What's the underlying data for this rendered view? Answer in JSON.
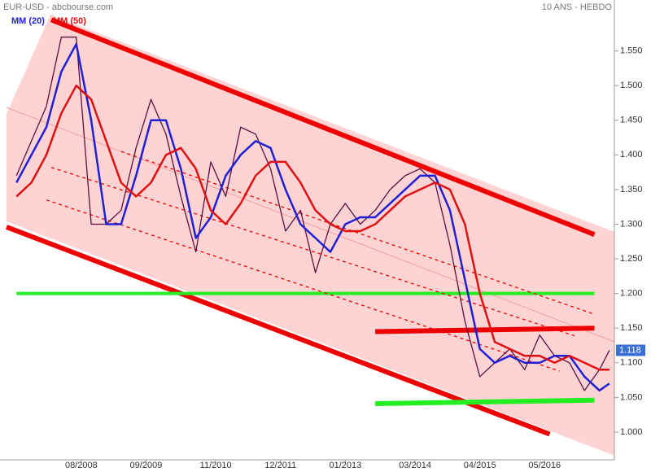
{
  "chart_data": {
    "type": "line",
    "title": "EUR-USD - abcbourse.com",
    "subtitle": "10 ANS - HEBDO",
    "x": [
      "07/2007",
      "10/2007",
      "01/2008",
      "04/2008",
      "07/2008",
      "10/2008",
      "01/2009",
      "04/2009",
      "07/2009",
      "10/2009",
      "01/2010",
      "04/2010",
      "07/2010",
      "10/2010",
      "01/2011",
      "04/2011",
      "07/2011",
      "10/2011",
      "01/2012",
      "04/2012",
      "07/2012",
      "10/2012",
      "01/2013",
      "04/2013",
      "07/2013",
      "10/2013",
      "01/2014",
      "04/2014",
      "07/2014",
      "10/2014",
      "01/2015",
      "04/2015",
      "07/2015",
      "10/2015",
      "01/2016",
      "04/2016",
      "07/2016",
      "10/2016",
      "01/2017",
      "04/2017",
      "06/2017"
    ],
    "series": [
      {
        "name": "EUR-USD",
        "color": "#5a1040",
        "legend": false,
        "values": [
          1.37,
          1.42,
          1.47,
          1.57,
          1.57,
          1.3,
          1.3,
          1.32,
          1.41,
          1.48,
          1.43,
          1.34,
          1.26,
          1.39,
          1.34,
          1.44,
          1.43,
          1.38,
          1.29,
          1.32,
          1.23,
          1.3,
          1.33,
          1.3,
          1.32,
          1.35,
          1.37,
          1.38,
          1.36,
          1.27,
          1.16,
          1.08,
          1.1,
          1.12,
          1.09,
          1.14,
          1.11,
          1.1,
          1.06,
          1.09,
          1.118
        ],
        "value_labels": [
          null,
          null,
          null,
          null,
          null,
          null,
          null,
          null,
          null,
          null,
          null,
          null,
          null,
          null,
          null,
          null,
          null,
          null,
          null,
          null,
          null,
          null,
          null,
          null,
          null,
          null,
          null,
          null,
          null,
          null,
          null,
          null,
          null,
          null,
          null,
          null,
          null,
          null,
          null,
          null,
          "1.118"
        ]
      },
      {
        "name": "MM (20)",
        "color": "#1f1fd6",
        "legend": true,
        "values": [
          1.36,
          1.4,
          1.44,
          1.52,
          1.56,
          1.45,
          1.3,
          1.3,
          1.37,
          1.45,
          1.45,
          1.38,
          1.28,
          1.31,
          1.37,
          1.4,
          1.42,
          1.41,
          1.35,
          1.3,
          1.28,
          1.26,
          1.3,
          1.31,
          1.31,
          1.33,
          1.35,
          1.37,
          1.37,
          1.32,
          1.22,
          1.12,
          1.1,
          1.11,
          1.1,
          1.1,
          1.11,
          1.11,
          1.08,
          1.06,
          1.07
        ]
      },
      {
        "name": "MM (50)",
        "color": "#e01010",
        "legend": true,
        "values": [
          1.34,
          1.36,
          1.4,
          1.46,
          1.5,
          1.48,
          1.42,
          1.36,
          1.34,
          1.36,
          1.4,
          1.41,
          1.38,
          1.32,
          1.3,
          1.33,
          1.37,
          1.39,
          1.39,
          1.36,
          1.32,
          1.3,
          1.29,
          1.29,
          1.3,
          1.32,
          1.34,
          1.35,
          1.36,
          1.35,
          1.3,
          1.2,
          1.13,
          1.12,
          1.11,
          1.11,
          1.1,
          1.11,
          1.1,
          1.09,
          1.09
        ]
      }
    ],
    "lines": [
      {
        "from": [
          "02/2008",
          1.595
        ],
        "to": [
          "03/2017",
          1.285
        ],
        "color": "#ee0000",
        "style": "thick"
      },
      {
        "from": [
          "05/2007",
          1.296
        ],
        "to": [
          "06/2016",
          0.997
        ],
        "color": "#ee0000",
        "style": "thick"
      },
      {
        "from": [
          "07/2007",
          1.2
        ],
        "to": [
          "03/2017",
          1.2
        ],
        "color": "#22ee22",
        "style": "medium"
      },
      {
        "from": [
          "07/2013",
          1.145
        ],
        "to": [
          "03/2017",
          1.15
        ],
        "color": "#ee0000",
        "style": "thick"
      },
      {
        "from": [
          "07/2013",
          1.041
        ],
        "to": [
          "03/2017",
          1.046
        ],
        "color": "#22ee22",
        "style": "thick"
      },
      {
        "from": [
          "04/2009",
          1.405
        ],
        "to": [
          "03/2017",
          1.17
        ],
        "color": "#ee0000",
        "style": "dashed"
      },
      {
        "from": [
          "02/2008",
          1.382
        ],
        "to": [
          "11/2016",
          1.139
        ],
        "color": "#ee0000",
        "style": "dashed"
      },
      {
        "from": [
          "01/2008",
          1.335
        ],
        "to": [
          "08/2016",
          1.088
        ],
        "color": "#ee0000",
        "style": "dashed"
      }
    ],
    "xlim": [
      "05/2007",
      "07/2017"
    ],
    "xticks": [
      "08/2008",
      "09/2009",
      "11/2010",
      "12/2011",
      "01/2013",
      "03/2014",
      "04/2015",
      "05/2016"
    ],
    "ylim": [
      0.96,
      1.62
    ],
    "yticks": [
      {
        "value": 1.0,
        "label": "1.000"
      },
      {
        "value": 1.05,
        "label": "1.050"
      },
      {
        "value": 1.1,
        "label": "1.100"
      },
      {
        "value": 1.15,
        "label": "1.150"
      },
      {
        "value": 1.2,
        "label": "1.200"
      },
      {
        "value": 1.25,
        "label": "1.250"
      },
      {
        "value": 1.3,
        "label": "1.300"
      },
      {
        "value": 1.35,
        "label": "1.350"
      },
      {
        "value": 1.4,
        "label": "1.400"
      },
      {
        "value": 1.45,
        "label": "1.450"
      },
      {
        "value": 1.5,
        "label": "1.500"
      },
      {
        "value": 1.55,
        "label": "1.550"
      }
    ]
  }
}
